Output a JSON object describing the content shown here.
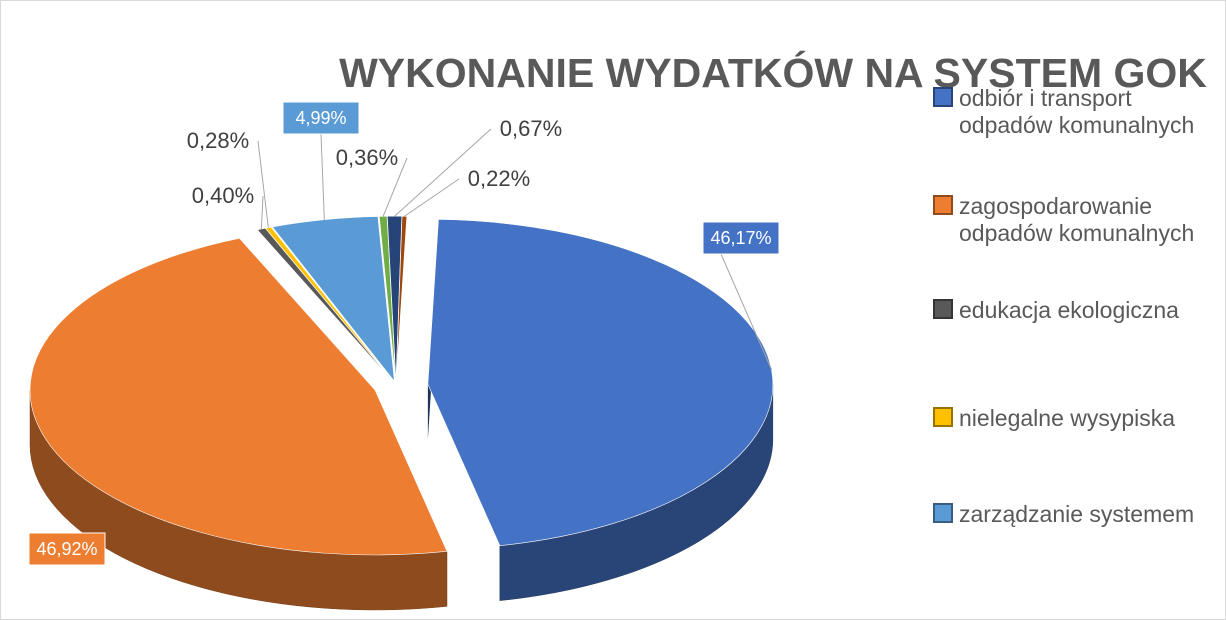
{
  "chart_data": {
    "type": "pie",
    "title": "WYKONANIE WYDATKÓW NA SYSTEM GOK",
    "categories": [
      "odbiór i transport odpadów komunalnych",
      "zagospodarowanie odpadów komunalnych",
      "edukacja ekologiczna",
      "nielegalne wysypiska",
      "zarządzanie systemem",
      null,
      null,
      null
    ],
    "values": [
      46.17,
      46.92,
      0.4,
      0.28,
      4.99,
      0.36,
      0.67,
      0.22
    ],
    "value_labels": [
      "46,17%",
      "46,92%",
      "0,40%",
      "0,28%",
      "4,99%",
      "0,36%",
      "0,67%",
      "0,22%"
    ],
    "colors": [
      "#4472c4",
      "#ed7d31",
      "#595959",
      "#ffc000",
      "#5b9bd5",
      "#70ad47",
      "#264478",
      "#9e480e"
    ],
    "legend": "right"
  }
}
